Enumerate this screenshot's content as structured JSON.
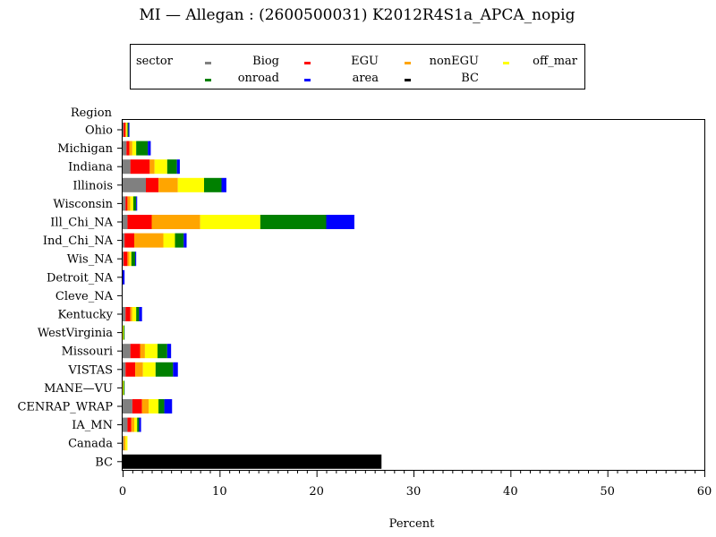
{
  "chart_data": {
    "type": "bar",
    "orientation": "horizontal",
    "stacked": true,
    "title": "MI  —  Allegan : (2600500031) K2012R4S1a_APCA_nopig",
    "xlabel": "Percent",
    "ylabel": "Region",
    "xlim": [
      0,
      60
    ],
    "xticks": [
      0,
      10,
      20,
      30,
      40,
      50,
      60
    ],
    "grid": false,
    "legend": {
      "title": "sector",
      "placement": "top",
      "entries": [
        "Biog",
        "EGU",
        "nonEGU",
        "off_mar",
        "onroad",
        "area",
        "BC"
      ]
    },
    "categories": [
      "Ohio",
      "Michigan",
      "Indiana",
      "Illinois",
      "Wisconsin",
      "Ill_Chi_NA",
      "Ind_Chi_NA",
      "Wis_NA",
      "Detroit_NA",
      "Cleve_NA",
      "Kentucky",
      "WestVirginia",
      "Missouri",
      "VISTAS",
      "MANE—VU",
      "CENRAP_WRAP",
      "IA_MN",
      "Canada",
      "BC"
    ],
    "series": [
      {
        "name": "Biog",
        "color": "#808080",
        "values": [
          0.1,
          0.4,
          0.8,
          2.4,
          0.3,
          0.5,
          0.2,
          0.1,
          0.0,
          0.0,
          0.3,
          0.0,
          0.8,
          0.3,
          0.0,
          1.0,
          0.5,
          0.1,
          0
        ]
      },
      {
        "name": "EGU",
        "color": "#ff0000",
        "values": [
          0.2,
          0.3,
          2.0,
          1.3,
          0.2,
          2.5,
          1.0,
          0.4,
          0.0,
          0.0,
          0.5,
          0.0,
          1.0,
          1.0,
          0.0,
          1.0,
          0.4,
          0.0,
          0
        ]
      },
      {
        "name": "nonEGU",
        "color": "#ffa500",
        "values": [
          0.1,
          0.3,
          0.5,
          2.0,
          0.3,
          5.0,
          3.0,
          0.2,
          0.0,
          0.0,
          0.2,
          0.0,
          0.5,
          0.8,
          0.0,
          0.7,
          0.3,
          0.2,
          0
        ]
      },
      {
        "name": "off_mar",
        "color": "#ffff00",
        "values": [
          0.1,
          0.4,
          1.3,
          2.7,
          0.3,
          6.2,
          1.2,
          0.2,
          0.0,
          0.0,
          0.4,
          0.1,
          1.3,
          1.3,
          0.1,
          1.0,
          0.3,
          0.2,
          0
        ]
      },
      {
        "name": "onroad",
        "color": "#008000",
        "values": [
          0.1,
          1.2,
          1.0,
          1.8,
          0.3,
          6.8,
          0.9,
          0.4,
          0.0,
          0.0,
          0.3,
          0.1,
          1.0,
          1.8,
          0.1,
          0.6,
          0.2,
          0.0,
          0
        ]
      },
      {
        "name": "area",
        "color": "#0000ff",
        "values": [
          0.1,
          0.3,
          0.3,
          0.5,
          0.1,
          2.9,
          0.3,
          0.1,
          0.2,
          0.0,
          0.3,
          0.0,
          0.4,
          0.5,
          0.0,
          0.8,
          0.2,
          0.0,
          0
        ]
      },
      {
        "name": "BC",
        "color": "#000000",
        "values": [
          0,
          0,
          0,
          0,
          0,
          0,
          0,
          0,
          0,
          0,
          0,
          0,
          0,
          0,
          0,
          0,
          0,
          0,
          26.7
        ]
      }
    ]
  }
}
